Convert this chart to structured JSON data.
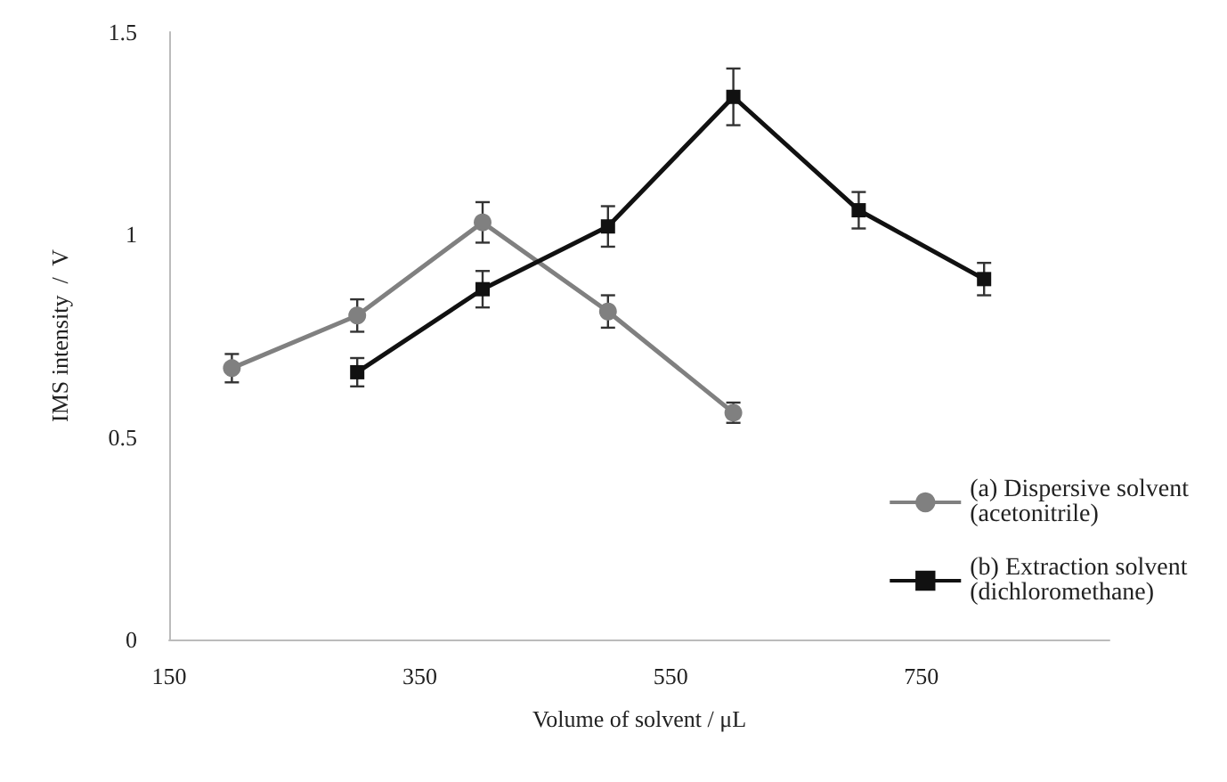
{
  "chart_data": {
    "type": "line",
    "xlabel": "Volume of solvent / μL",
    "ylabel": "IMS intensity  /  V",
    "xlim": [
      150,
      900
    ],
    "xticks": [
      150,
      350,
      550,
      750
    ],
    "ylim": [
      0,
      1.5
    ],
    "yticks": [
      0,
      0.5,
      1,
      1.5
    ],
    "grid": false,
    "legend": "right",
    "line_style": "solid",
    "series": [
      {
        "name": "(a) Dispersive solvent (acetonitrile)",
        "color": "#808080",
        "marker": "circle",
        "x": [
          200,
          300,
          400,
          500,
          600
        ],
        "values": [
          0.67,
          0.8,
          1.03,
          0.81,
          0.56
        ],
        "errors": [
          0.035,
          0.04,
          0.05,
          0.04,
          0.025
        ]
      },
      {
        "name": "(b) Extraction solvent (dichloromethane)",
        "color": "#111111",
        "marker": "square",
        "x": [
          300,
          400,
          500,
          600,
          700,
          800
        ],
        "values": [
          0.66,
          0.865,
          1.02,
          1.34,
          1.06,
          0.89
        ],
        "errors": [
          0.035,
          0.045,
          0.05,
          0.07,
          0.045,
          0.04
        ]
      }
    ]
  }
}
